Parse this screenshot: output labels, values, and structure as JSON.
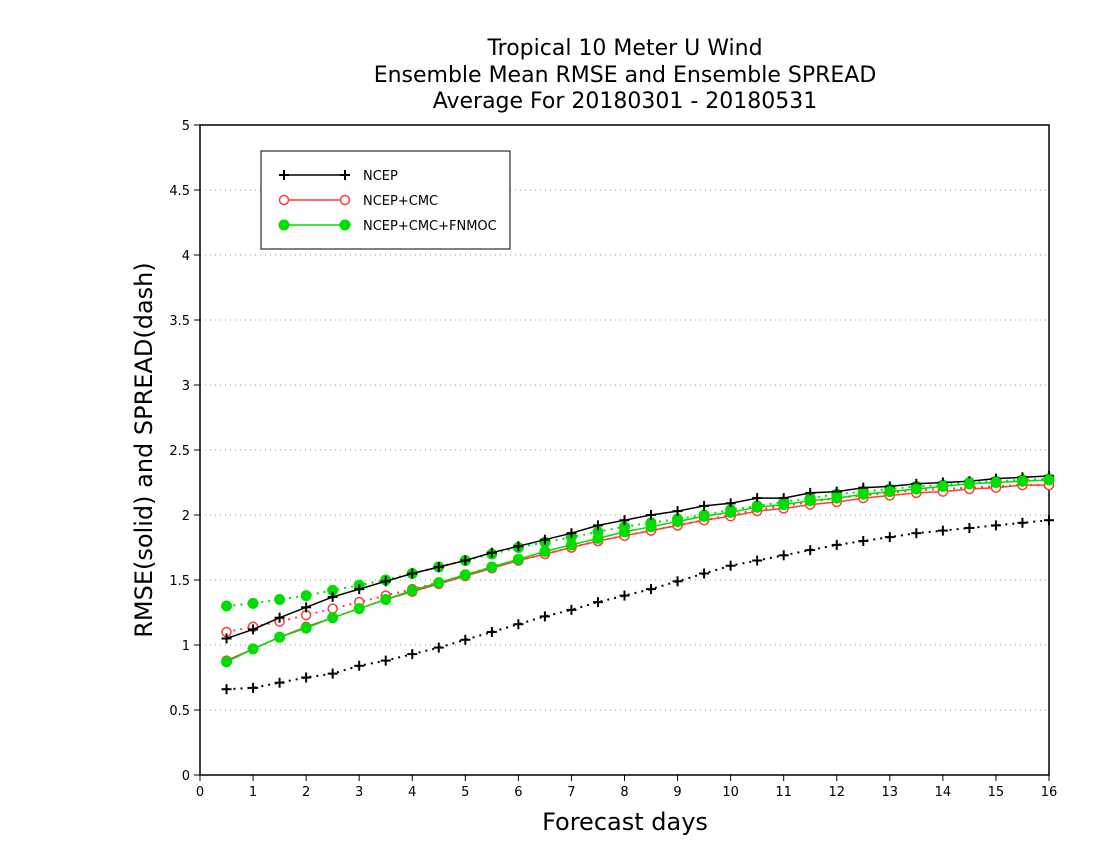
{
  "chart_data": {
    "type": "line",
    "title_lines": [
      "Tropical 10 Meter U Wind",
      "Ensemble Mean RMSE and Ensemble SPREAD",
      "Average For 20180301 - 20180531"
    ],
    "xlabel": "Forecast days",
    "ylabel": "RMSE(solid) and SPREAD(dash)",
    "xlim": [
      0,
      16
    ],
    "ylim": [
      0,
      5
    ],
    "x_ticks": [
      "0",
      "1",
      "2",
      "3",
      "4",
      "5",
      "6",
      "7",
      "8",
      "9",
      "10",
      "11",
      "12",
      "13",
      "14",
      "15",
      "16"
    ],
    "y_ticks": [
      "0",
      "0.5",
      "1",
      "1.5",
      "2",
      "2.5",
      "3",
      "3.5",
      "4",
      "4.5",
      "5"
    ],
    "grid": "horizontal dotted",
    "legend_position": "top-left",
    "x": [
      0.5,
      1,
      1.5,
      2,
      2.5,
      3,
      3.5,
      4,
      4.5,
      5,
      5.5,
      6,
      6.5,
      7,
      7.5,
      8,
      8.5,
      9,
      9.5,
      10,
      10.5,
      11,
      11.5,
      12,
      12.5,
      13,
      13.5,
      14,
      14.5,
      15,
      15.5,
      16
    ],
    "series": [
      {
        "name": "NCEP",
        "color": "#000000",
        "marker": "plus",
        "rmse": [
          1.05,
          1.12,
          1.21,
          1.29,
          1.37,
          1.43,
          1.49,
          1.55,
          1.6,
          1.65,
          1.71,
          1.76,
          1.81,
          1.86,
          1.92,
          1.96,
          2.0,
          2.03,
          2.07,
          2.09,
          2.13,
          2.13,
          2.17,
          2.18,
          2.21,
          2.22,
          2.24,
          2.25,
          2.26,
          2.28,
          2.29,
          2.3
        ],
        "spread": [
          0.66,
          0.67,
          0.71,
          0.75,
          0.78,
          0.84,
          0.88,
          0.93,
          0.98,
          1.04,
          1.1,
          1.16,
          1.22,
          1.27,
          1.33,
          1.38,
          1.43,
          1.49,
          1.55,
          1.61,
          1.65,
          1.69,
          1.73,
          1.77,
          1.8,
          1.83,
          1.86,
          1.88,
          1.9,
          1.92,
          1.94,
          1.96
        ]
      },
      {
        "name": "NCEP+CMC",
        "color": "#ff3b3b",
        "marker": "open-circle",
        "rmse": [
          0.88,
          0.97,
          1.06,
          1.14,
          1.21,
          1.28,
          1.35,
          1.41,
          1.47,
          1.53,
          1.59,
          1.65,
          1.7,
          1.75,
          1.8,
          1.84,
          1.88,
          1.92,
          1.96,
          1.99,
          2.03,
          2.05,
          2.08,
          2.1,
          2.13,
          2.15,
          2.17,
          2.18,
          2.2,
          2.21,
          2.23,
          2.23
        ],
        "spread": [
          1.1,
          1.14,
          1.18,
          1.23,
          1.28,
          1.33,
          1.38,
          1.43,
          1.48,
          1.54,
          1.6,
          1.65,
          1.7,
          1.75,
          1.8,
          1.84,
          1.88,
          1.92,
          1.96,
          2.0,
          2.04,
          2.07,
          2.1,
          2.13,
          2.15,
          2.17,
          2.19,
          2.2,
          2.21,
          2.22,
          2.23,
          2.23
        ]
      },
      {
        "name": "NCEP+CMC+FNMOC",
        "color": "#00dd00",
        "marker": "filled-circle",
        "rmse": [
          0.87,
          0.97,
          1.06,
          1.13,
          1.21,
          1.28,
          1.35,
          1.42,
          1.48,
          1.54,
          1.6,
          1.66,
          1.72,
          1.77,
          1.82,
          1.87,
          1.91,
          1.95,
          1.99,
          2.02,
          2.06,
          2.08,
          2.11,
          2.13,
          2.16,
          2.18,
          2.2,
          2.22,
          2.24,
          2.25,
          2.26,
          2.27
        ],
        "spread": [
          1.3,
          1.32,
          1.35,
          1.38,
          1.42,
          1.46,
          1.5,
          1.55,
          1.6,
          1.65,
          1.7,
          1.75,
          1.79,
          1.83,
          1.87,
          1.91,
          1.94,
          1.97,
          2.0,
          2.04,
          2.07,
          2.1,
          2.13,
          2.16,
          2.18,
          2.2,
          2.22,
          2.23,
          2.25,
          2.26,
          2.27,
          2.28
        ]
      }
    ]
  }
}
